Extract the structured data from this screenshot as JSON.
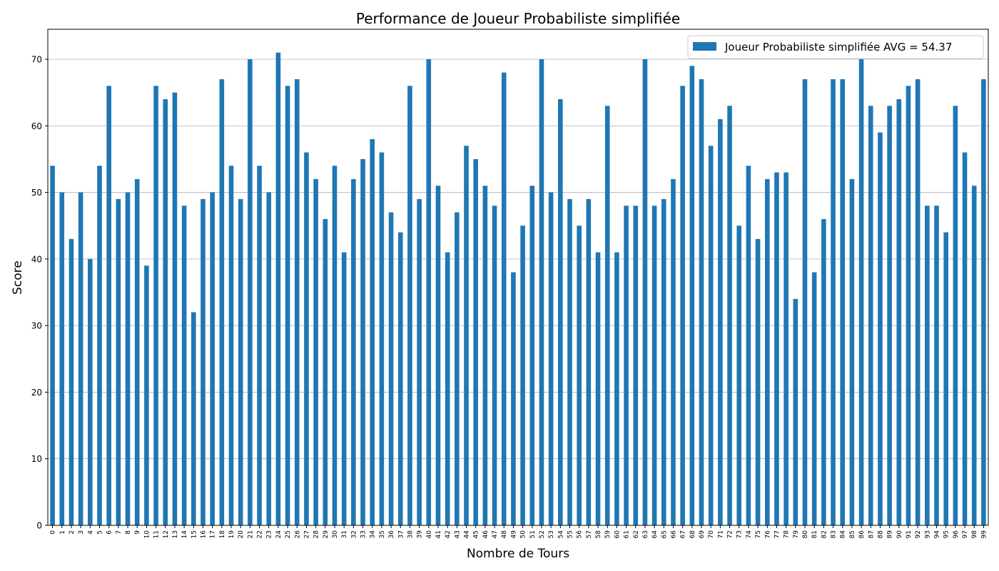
{
  "chart_data": {
    "type": "bar",
    "title": "Performance de Joueur Probabiliste simplifiée",
    "xlabel": "Nombre de Tours",
    "ylabel": "Score",
    "ylim": [
      0,
      74.5
    ],
    "yticks": [
      0,
      10,
      20,
      30,
      40,
      50,
      60,
      70
    ],
    "grid": "y",
    "legend_position": "top-right",
    "color": "#1f77b4",
    "categories": [
      "0",
      "1",
      "2",
      "3",
      "4",
      "5",
      "6",
      "7",
      "8",
      "9",
      "10",
      "11",
      "12",
      "13",
      "14",
      "15",
      "16",
      "17",
      "18",
      "19",
      "20",
      "21",
      "22",
      "23",
      "24",
      "25",
      "26",
      "27",
      "28",
      "29",
      "30",
      "31",
      "32",
      "33",
      "34",
      "35",
      "36",
      "37",
      "38",
      "39",
      "40",
      "41",
      "42",
      "43",
      "44",
      "45",
      "46",
      "47",
      "48",
      "49",
      "50",
      "51",
      "52",
      "53",
      "54",
      "55",
      "56",
      "57",
      "58",
      "59",
      "60",
      "61",
      "62",
      "63",
      "64",
      "65",
      "66",
      "67",
      "68",
      "69",
      "70",
      "71",
      "72",
      "73",
      "74",
      "75",
      "76",
      "77",
      "78",
      "79",
      "80",
      "81",
      "82",
      "83",
      "84",
      "85",
      "86",
      "87",
      "88",
      "89",
      "90",
      "91",
      "92",
      "93",
      "94",
      "95",
      "96",
      "97",
      "98",
      "99"
    ],
    "series": [
      {
        "name": "Joueur Probabiliste simplifiée AVG = 54.37",
        "values": [
          54,
          50,
          43,
          50,
          40,
          54,
          66,
          49,
          50,
          52,
          39,
          66,
          64,
          65,
          48,
          32,
          49,
          50,
          67,
          54,
          49,
          70,
          54,
          50,
          71,
          66,
          67,
          56,
          52,
          46,
          54,
          41,
          52,
          55,
          58,
          56,
          47,
          44,
          66,
          49,
          70,
          51,
          41,
          47,
          57,
          55,
          51,
          48,
          68,
          38,
          45,
          51,
          70,
          50,
          64,
          49,
          45,
          49,
          41,
          63,
          41,
          48,
          48,
          70,
          48,
          49,
          52,
          66,
          69,
          67,
          57,
          61,
          63,
          45,
          54,
          43,
          52,
          53,
          53,
          34,
          67,
          38,
          46,
          67,
          67,
          52,
          70,
          63,
          59,
          63,
          64,
          66,
          67,
          48,
          48,
          44,
          63,
          56,
          51,
          67
        ]
      }
    ]
  }
}
